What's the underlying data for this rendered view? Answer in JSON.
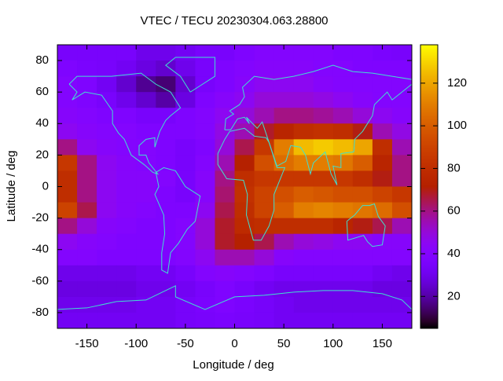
{
  "chart_data": {
    "type": "heatmap",
    "title": "VTEC / TECU 20230304.063.28800",
    "x_label": "Longitude / deg",
    "y_label": "Latitude / deg",
    "xlim": [
      -180,
      180
    ],
    "xticks": [
      -150,
      -100,
      -50,
      0,
      50,
      100,
      150
    ],
    "ylim": [
      -90,
      90
    ],
    "yticks": [
      -80,
      -60,
      -40,
      -20,
      0,
      20,
      40,
      60,
      80
    ],
    "zlim": [
      5,
      138
    ],
    "zticks": [
      20,
      40,
      60,
      80,
      100,
      120
    ],
    "colormap": "gnuplot",
    "coastline_color": "#40e0d0",
    "x": [
      -170,
      -150,
      -130,
      -110,
      -90,
      -70,
      -50,
      -30,
      -10,
      10,
      30,
      50,
      70,
      90,
      110,
      130,
      150,
      170
    ],
    "y": [
      85,
      75,
      65,
      55,
      45,
      35,
      25,
      15,
      5,
      -5,
      -15,
      -25,
      -35,
      -45,
      -55,
      -65,
      -75,
      -85
    ],
    "z": [
      [
        35,
        35,
        35,
        35,
        30,
        30,
        32,
        35,
        35,
        38,
        40,
        40,
        40,
        40,
        38,
        38,
        36,
        35
      ],
      [
        38,
        36,
        35,
        32,
        28,
        25,
        30,
        35,
        38,
        40,
        42,
        42,
        42,
        40,
        40,
        38,
        38,
        38
      ],
      [
        40,
        38,
        32,
        25,
        18,
        15,
        25,
        35,
        38,
        42,
        45,
        45,
        45,
        42,
        40,
        40,
        40,
        40
      ],
      [
        40,
        38,
        35,
        30,
        25,
        20,
        28,
        38,
        42,
        45,
        50,
        50,
        50,
        48,
        45,
        42,
        40,
        40
      ],
      [
        42,
        40,
        38,
        38,
        35,
        35,
        38,
        40,
        45,
        50,
        55,
        60,
        60,
        58,
        55,
        50,
        45,
        42
      ],
      [
        45,
        42,
        40,
        40,
        38,
        38,
        38,
        40,
        48,
        55,
        68,
        75,
        80,
        82,
        80,
        70,
        55,
        48
      ],
      [
        60,
        45,
        42,
        40,
        40,
        38,
        35,
        38,
        50,
        65,
        85,
        110,
        125,
        128,
        125,
        120,
        80,
        55
      ],
      [
        85,
        60,
        45,
        42,
        40,
        38,
        35,
        40,
        55,
        72,
        95,
        105,
        110,
        110,
        108,
        100,
        75,
        60
      ],
      [
        80,
        60,
        45,
        42,
        42,
        40,
        35,
        42,
        60,
        80,
        85,
        85,
        85,
        85,
        85,
        80,
        70,
        60
      ],
      [
        80,
        60,
        45,
        42,
        42,
        38,
        35,
        42,
        62,
        82,
        90,
        95,
        100,
        98,
        95,
        95,
        90,
        85
      ],
      [
        90,
        65,
        45,
        42,
        40,
        38,
        38,
        45,
        65,
        80,
        90,
        100,
        110,
        112,
        110,
        108,
        105,
        95
      ],
      [
        60,
        50,
        42,
        40,
        38,
        38,
        40,
        50,
        68,
        78,
        80,
        80,
        80,
        80,
        75,
        70,
        65,
        55
      ],
      [
        45,
        42,
        40,
        38,
        38,
        38,
        40,
        50,
        68,
        72,
        65,
        55,
        50,
        48,
        45,
        45,
        42,
        42
      ],
      [
        40,
        40,
        38,
        38,
        38,
        38,
        40,
        45,
        55,
        55,
        50,
        42,
        40,
        40,
        40,
        40,
        40,
        40
      ],
      [
        30,
        30,
        30,
        30,
        32,
        32,
        35,
        40,
        42,
        40,
        38,
        35,
        35,
        35,
        35,
        35,
        32,
        30
      ],
      [
        28,
        28,
        28,
        28,
        30,
        30,
        32,
        35,
        38,
        35,
        32,
        30,
        30,
        30,
        30,
        30,
        28,
        28
      ],
      [
        30,
        30,
        30,
        30,
        32,
        32,
        34,
        36,
        38,
        36,
        34,
        32,
        30,
        30,
        30,
        30,
        30,
        30
      ],
      [
        32,
        32,
        32,
        32,
        32,
        32,
        34,
        35,
        36,
        35,
        34,
        32,
        32,
        32,
        32,
        32,
        32,
        32
      ]
    ]
  }
}
